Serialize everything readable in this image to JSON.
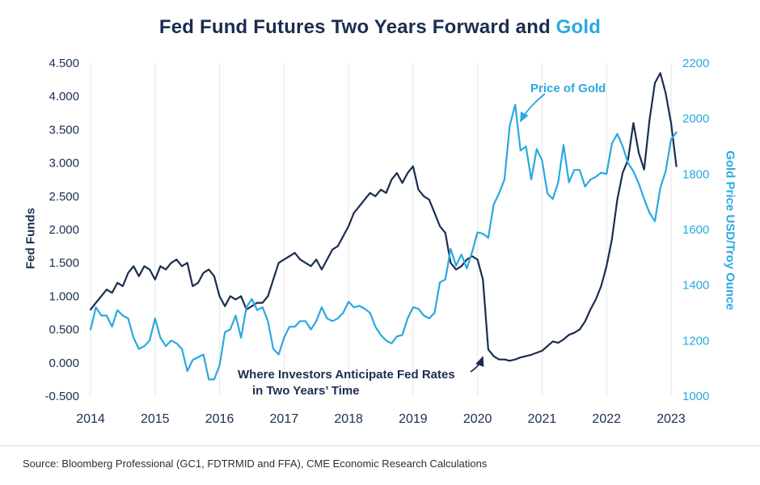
{
  "title": {
    "main": "Fed Fund Futures Two Years Forward and",
    "accent": "Gold"
  },
  "annotations": {
    "gold": "Price of Gold",
    "fed_line1": "Where Investors Anticipate Fed Rates",
    "fed_line2": "in Two Years’ Time"
  },
  "source": "Source: Bloomberg Professional (GC1, FDTRMID and FFA), CME Economic Research Calculations",
  "colors": {
    "navy": "#1b2d4f",
    "blue": "#2aa9e0",
    "grid": "#e6e6e6",
    "divider": "#d9d9d9",
    "source_text": "#2e2e2e"
  },
  "chart_data": {
    "type": "line",
    "title": "Fed Fund Futures Two Years Forward and Gold",
    "grid": "vertical-yearly",
    "legend_position": "none",
    "x_axis": {
      "min": 2014,
      "max": 2023,
      "ticks": [
        "2014",
        "2015",
        "2016",
        "2017",
        "2018",
        "2019",
        "2020",
        "2021",
        "2022",
        "2023"
      ]
    },
    "y_left": {
      "label": "Fed Funds",
      "min": -0.5,
      "max": 4.5,
      "ticks": [
        "4.500",
        "4.000",
        "3.500",
        "3.000",
        "2.500",
        "2.000",
        "1.500",
        "1.000",
        "0.500",
        "0.000",
        "-0.500"
      ]
    },
    "y_right": {
      "label": "Gold Price USD/Troy Ounce",
      "min": 1000,
      "max": 2200,
      "ticks": [
        "2200",
        "2000",
        "1800",
        "1600",
        "1400",
        "1200",
        "1000"
      ]
    },
    "series": [
      {
        "name": "Where Investors Anticipate Fed Rates in Two Years' Time (Fed Fund Futures Two Years Forward)",
        "axis": "left",
        "color": "#1b2d4f",
        "x_start": 2014.0,
        "x_step": 0.08333,
        "values": [
          0.8,
          0.9,
          1.0,
          1.1,
          1.05,
          1.2,
          1.15,
          1.35,
          1.45,
          1.3,
          1.45,
          1.4,
          1.25,
          1.45,
          1.4,
          1.5,
          1.55,
          1.45,
          1.5,
          1.15,
          1.2,
          1.35,
          1.4,
          1.3,
          1.0,
          0.85,
          1.0,
          0.95,
          1.0,
          0.8,
          0.85,
          0.9,
          0.9,
          1.0,
          1.25,
          1.5,
          1.55,
          1.6,
          1.65,
          1.55,
          1.5,
          1.45,
          1.55,
          1.4,
          1.55,
          1.7,
          1.75,
          1.9,
          2.05,
          2.25,
          2.35,
          2.45,
          2.55,
          2.5,
          2.6,
          2.55,
          2.75,
          2.85,
          2.7,
          2.85,
          2.95,
          2.6,
          2.5,
          2.45,
          2.25,
          2.05,
          1.95,
          1.5,
          1.4,
          1.45,
          1.55,
          1.6,
          1.55,
          1.25,
          0.2,
          0.1,
          0.05,
          0.05,
          0.03,
          0.05,
          0.08,
          0.1,
          0.12,
          0.15,
          0.18,
          0.25,
          0.32,
          0.3,
          0.35,
          0.42,
          0.45,
          0.5,
          0.62,
          0.8,
          0.95,
          1.15,
          1.45,
          1.85,
          2.45,
          2.85,
          3.05,
          3.6,
          3.15,
          2.9,
          3.65,
          4.2,
          4.35,
          4.05,
          3.6,
          2.95
        ]
      },
      {
        "name": "Price of Gold",
        "axis": "right",
        "color": "#2aa9e0",
        "x_start": 2014.0,
        "x_step": 0.08333,
        "values": [
          1240,
          1320,
          1290,
          1290,
          1250,
          1310,
          1290,
          1280,
          1210,
          1170,
          1180,
          1200,
          1280,
          1210,
          1180,
          1200,
          1190,
          1170,
          1090,
          1130,
          1140,
          1150,
          1060,
          1060,
          1110,
          1230,
          1240,
          1290,
          1210,
          1320,
          1350,
          1310,
          1320,
          1270,
          1170,
          1150,
          1210,
          1250,
          1250,
          1270,
          1270,
          1240,
          1270,
          1320,
          1280,
          1270,
          1280,
          1300,
          1340,
          1320,
          1325,
          1315,
          1300,
          1250,
          1220,
          1200,
          1190,
          1215,
          1220,
          1280,
          1320,
          1315,
          1290,
          1280,
          1300,
          1410,
          1420,
          1530,
          1470,
          1510,
          1460,
          1520,
          1590,
          1585,
          1570,
          1690,
          1730,
          1780,
          1975,
          2050,
          1885,
          1900,
          1780,
          1890,
          1850,
          1730,
          1710,
          1770,
          1905,
          1770,
          1815,
          1815,
          1755,
          1780,
          1790,
          1805,
          1800,
          1910,
          1945,
          1900,
          1840,
          1810,
          1765,
          1710,
          1660,
          1630,
          1750,
          1810,
          1925,
          1950
        ]
      }
    ]
  }
}
